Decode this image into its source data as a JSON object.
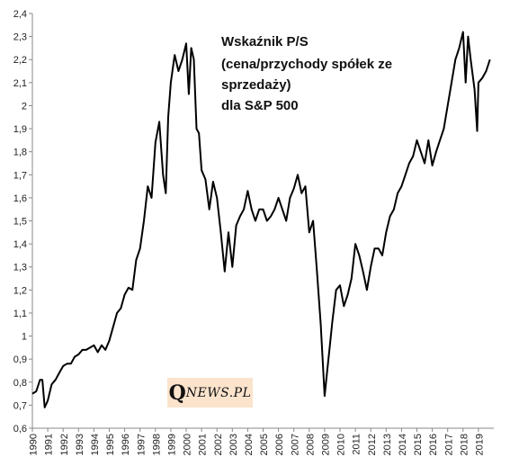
{
  "chart_data": {
    "type": "line",
    "title_lines": [
      "Wskaźnik P/S",
      "(cena/przychody spółek ze",
      "sprzedaży)",
      "dla S&P 500"
    ],
    "xlabel": "",
    "ylabel": "",
    "ylim": [
      0.6,
      2.4
    ],
    "y_ticks": [
      "0,6",
      "0,7",
      "0,8",
      "0,9",
      "1",
      "1,1",
      "1,2",
      "1,3",
      "1,4",
      "1,5",
      "1,6",
      "1,7",
      "1,8",
      "1,9",
      "2",
      "2,1",
      "2,2",
      "2,3",
      "2,4"
    ],
    "x_ticks": [
      "1990",
      "1991",
      "1992",
      "1993",
      "1994",
      "1995",
      "1996",
      "1997",
      "1998",
      "1999",
      "2000",
      "2001",
      "2002",
      "2003",
      "2004",
      "2005",
      "2006",
      "2007",
      "2008",
      "2009",
      "2010",
      "2011",
      "2012",
      "2013",
      "2014",
      "2015",
      "2016",
      "2017",
      "2018",
      "2019"
    ],
    "grid": false,
    "legend": "none",
    "line_color": "#000000",
    "series": [
      {
        "x": [
          1990.0,
          1990.25,
          1990.5,
          1990.65,
          1990.8,
          1991.0,
          1991.25,
          1991.5,
          1991.75,
          1992.0,
          1992.25,
          1992.5,
          1992.75,
          1993.0,
          1993.25,
          1993.5,
          1993.75,
          1994.0,
          1994.25,
          1994.5,
          1994.75,
          1995.0,
          1995.25,
          1995.5,
          1995.75,
          1996.0,
          1996.25,
          1996.5,
          1996.75,
          1997.0,
          1997.25,
          1997.5,
          1997.75,
          1998.0,
          1998.25,
          1998.5,
          1998.67,
          1998.83,
          1999.0,
          1999.25,
          1999.5,
          1999.75,
          2000.0,
          2000.17,
          2000.33,
          2000.5,
          2000.67,
          2000.83,
          2001.0,
          2001.25,
          2001.5,
          2001.75,
          2002.0,
          2002.25,
          2002.5,
          2002.75,
          2003.0,
          2003.25,
          2003.5,
          2003.75,
          2004.0,
          2004.25,
          2004.5,
          2004.75,
          2005.0,
          2005.25,
          2005.5,
          2005.75,
          2006.0,
          2006.25,
          2006.5,
          2006.75,
          2007.0,
          2007.25,
          2007.5,
          2007.75,
          2008.0,
          2008.25,
          2008.5,
          2008.75,
          2009.0,
          2009.17,
          2009.33,
          2009.5,
          2009.75,
          2010.0,
          2010.25,
          2010.5,
          2010.75,
          2011.0,
          2011.25,
          2011.5,
          2011.75,
          2012.0,
          2012.25,
          2012.5,
          2012.75,
          2013.0,
          2013.25,
          2013.5,
          2013.75,
          2014.0,
          2014.25,
          2014.5,
          2014.75,
          2015.0,
          2015.25,
          2015.5,
          2015.75,
          2016.0,
          2016.25,
          2016.5,
          2016.75,
          2017.0,
          2017.25,
          2017.5,
          2017.75,
          2018.0,
          2018.17,
          2018.33,
          2018.5,
          2018.75,
          2018.92,
          2019.0,
          2019.25,
          2019.5,
          2019.75
        ],
        "values": [
          0.75,
          0.76,
          0.81,
          0.81,
          0.69,
          0.72,
          0.79,
          0.81,
          0.84,
          0.87,
          0.88,
          0.88,
          0.91,
          0.92,
          0.94,
          0.94,
          0.95,
          0.96,
          0.93,
          0.96,
          0.94,
          0.98,
          1.04,
          1.1,
          1.12,
          1.18,
          1.21,
          1.2,
          1.33,
          1.38,
          1.5,
          1.65,
          1.6,
          1.84,
          1.93,
          1.7,
          1.62,
          1.95,
          2.1,
          2.22,
          2.15,
          2.2,
          2.27,
          2.05,
          2.25,
          2.2,
          1.9,
          1.88,
          1.72,
          1.68,
          1.55,
          1.67,
          1.6,
          1.45,
          1.28,
          1.45,
          1.3,
          1.48,
          1.52,
          1.55,
          1.63,
          1.55,
          1.5,
          1.55,
          1.55,
          1.5,
          1.52,
          1.55,
          1.6,
          1.55,
          1.5,
          1.6,
          1.64,
          1.7,
          1.62,
          1.65,
          1.45,
          1.5,
          1.28,
          1.05,
          0.74,
          0.85,
          0.95,
          1.06,
          1.2,
          1.22,
          1.13,
          1.18,
          1.25,
          1.4,
          1.35,
          1.28,
          1.2,
          1.3,
          1.38,
          1.38,
          1.35,
          1.45,
          1.52,
          1.55,
          1.62,
          1.65,
          1.7,
          1.75,
          1.78,
          1.85,
          1.8,
          1.75,
          1.85,
          1.74,
          1.8,
          1.85,
          1.9,
          2.0,
          2.1,
          2.2,
          2.25,
          2.32,
          2.1,
          2.3,
          2.2,
          2.07,
          1.89,
          2.1,
          2.12,
          2.15,
          2.2
        ]
      }
    ]
  },
  "logo": {
    "q": "Q",
    "rest": "NEWS.PL"
  }
}
